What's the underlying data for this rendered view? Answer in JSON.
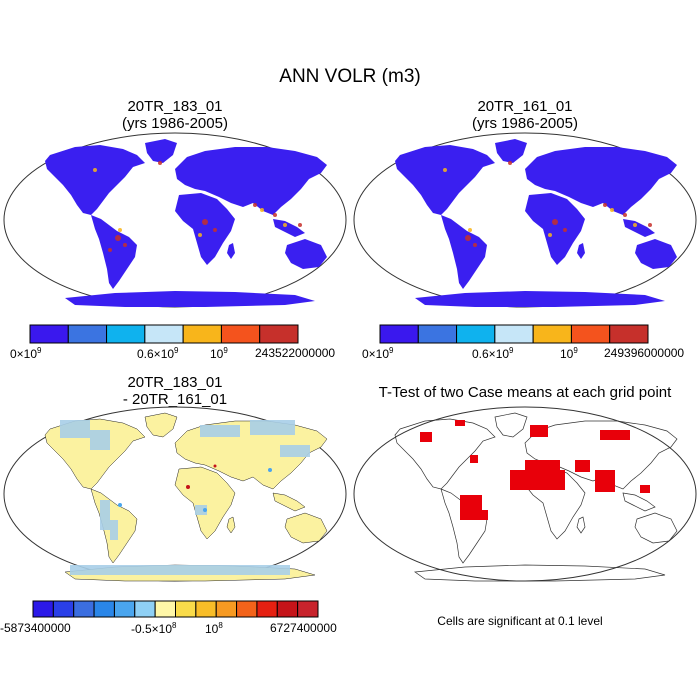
{
  "figure_title": "ANN VOLR (m3)",
  "panels": [
    {
      "title_line1": "20TR_183_01",
      "title_line2": "(yrs 1986-2005)",
      "colorbar": {
        "colors": [
          "#3a18ee",
          "#3b74e1",
          "#0fb2ee",
          "#c6e6f8",
          "#f8b51b",
          "#f4531d",
          "#c6302b"
        ],
        "labels": [
          "0×10",
          "0.6×10",
          "10",
          "243522000000"
        ],
        "exponents": [
          "9",
          "9",
          "9"
        ]
      }
    },
    {
      "title_line1": "20TR_161_01",
      "title_line2": "(yrs 1986-2005)",
      "colorbar": {
        "colors": [
          "#3a18ee",
          "#3b74e1",
          "#0fb2ee",
          "#c6e6f8",
          "#f8b51b",
          "#f4531d",
          "#c6302b"
        ],
        "labels": [
          "0×10",
          "0.6×10",
          "10",
          "249396000000"
        ],
        "exponents": [
          "9",
          "9",
          "9"
        ]
      }
    },
    {
      "title_line1": "20TR_183_01",
      "title_line2": "- 20TR_161_01",
      "colorbar": {
        "colors": [
          "#2b19e8",
          "#2a3fe8",
          "#3b6ee0",
          "#2a86e8",
          "#4aa5ee",
          "#8fd0f5",
          "#fff7a8",
          "#f9db4a",
          "#f8bd28",
          "#f79a22",
          "#f3631a",
          "#e52011",
          "#c51419",
          "#c8232c"
        ],
        "labels": [
          "-5873400000",
          "-0.5×10",
          "10",
          "6727400000"
        ],
        "exponents": [
          "8",
          "8"
        ]
      }
    },
    {
      "title_line1": "T-Test of two Case means at each grid point",
      "footnote": "Cells are significant at 0.1 level"
    }
  ],
  "colors": {
    "land_main": "#3a1ff0",
    "diff_land": "#fbf2a0",
    "diff_blue": "#a8cfe8",
    "significant": "#e8000a"
  }
}
